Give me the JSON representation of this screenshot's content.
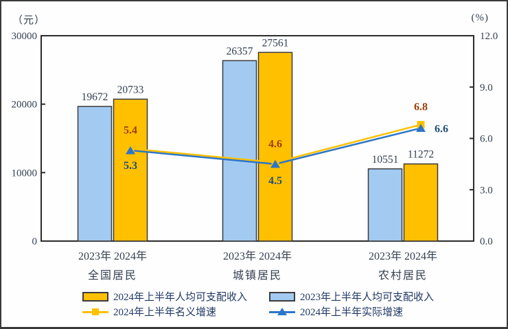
{
  "axis_units": {
    "left": "（元）",
    "right": "(%)"
  },
  "chart_data": {
    "type": "bar+line combo, dual axis",
    "categories": [
      "全国居民",
      "城镇居民",
      "农村居民"
    ],
    "year_labels": [
      "2023年",
      "2024年"
    ],
    "left_axis": {
      "unit": "（元）",
      "min": 0,
      "max": 30000,
      "ticks": [
        0,
        10000,
        20000,
        30000
      ],
      "tick_labels": [
        "0",
        "10000",
        "20000",
        "30000"
      ]
    },
    "right_axis": {
      "unit": "(%)",
      "min": 0,
      "max": 12,
      "ticks": [
        0,
        3,
        6,
        9,
        12
      ],
      "tick_labels": [
        "0.0",
        "3.0",
        "6.0",
        "9.0",
        "12.0"
      ]
    },
    "series": [
      {
        "name": "2023年上半年人均可支配收入",
        "type": "bar",
        "axis": "left",
        "color": "#A3CBF2",
        "values": [
          19672,
          26357,
          10551
        ]
      },
      {
        "name": "2024年上半年人均可支配收入",
        "type": "bar",
        "axis": "left",
        "color": "#FFC000",
        "values": [
          20733,
          27561,
          11272
        ]
      },
      {
        "name": "2024年上半年名义增速",
        "type": "line",
        "axis": "right",
        "color": "#FFC000",
        "marker": "square",
        "values": [
          5.4,
          4.6,
          6.8
        ],
        "label_color": "#9C3D08",
        "label_offsets": [
          [
            0,
            -22
          ],
          [
            0,
            -22
          ],
          [
            0,
            -21
          ]
        ]
      },
      {
        "name": "2024年上半年实际增速",
        "type": "line",
        "axis": "right",
        "color": "#2B76C9",
        "marker": "triangle",
        "values": [
          5.3,
          4.5,
          6.6
        ],
        "label_color": "#1F4E79",
        "label_offsets": [
          [
            0,
            27
          ],
          [
            0,
            29
          ],
          [
            30,
            6
          ]
        ]
      }
    ],
    "grid": false,
    "legend_position": "bottom",
    "value_label_color": "#333F50"
  },
  "legend": [
    {
      "label": "2024年上半年人均可支配收入",
      "swatch": "bar",
      "color": "#FFC000"
    },
    {
      "label": "2023年上半年人均可支配收入",
      "swatch": "bar",
      "color": "#A3CBF2"
    },
    {
      "label": "2024年上半年名义增速",
      "swatch": "line-square",
      "color": "#FFC000"
    },
    {
      "label": "2024年上半年实际增速",
      "swatch": "line-triangle",
      "color": "#2B76C9"
    }
  ]
}
